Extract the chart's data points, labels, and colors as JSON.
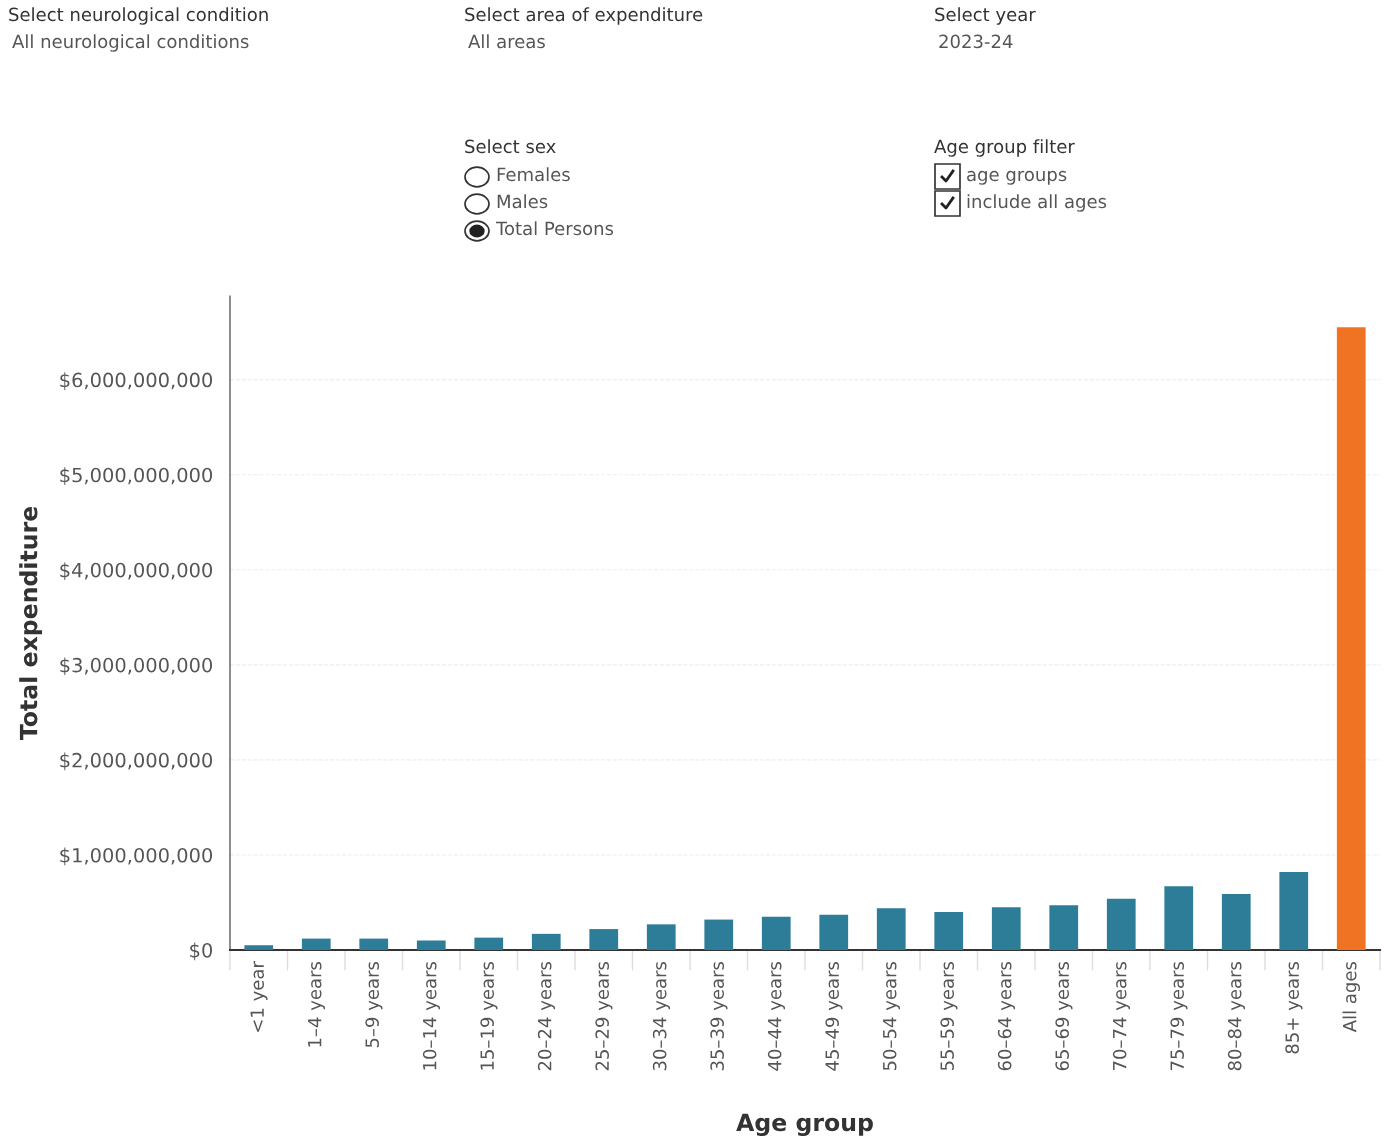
{
  "chart_data": {
    "type": "bar",
    "xlabel": "Age group",
    "ylabel": "Total expenditure",
    "categories": [
      "<1 year",
      "1–4 years",
      "5–9 years",
      "10–14 years",
      "15–19 years",
      "20–24 years",
      "25–29 years",
      "30–34 years",
      "35–39 years",
      "40–44 years",
      "45–49 years",
      "50–54 years",
      "55–59 years",
      "60–64 years",
      "65–69 years",
      "70–74 years",
      "75–79 years",
      "80–84 years",
      "85+ years",
      "All ages"
    ],
    "values": [
      50000000,
      120000000,
      120000000,
      100000000,
      130000000,
      170000000,
      220000000,
      270000000,
      320000000,
      350000000,
      370000000,
      440000000,
      400000000,
      450000000,
      470000000,
      540000000,
      670000000,
      590000000,
      820000000,
      6550000000
    ],
    "colors": [
      "#2e7d98",
      "#2e7d98",
      "#2e7d98",
      "#2e7d98",
      "#2e7d98",
      "#2e7d98",
      "#2e7d98",
      "#2e7d98",
      "#2e7d98",
      "#2e7d98",
      "#2e7d98",
      "#2e7d98",
      "#2e7d98",
      "#2e7d98",
      "#2e7d98",
      "#2e7d98",
      "#2e7d98",
      "#2e7d98",
      "#2e7d98",
      "#f07223"
    ],
    "ylim": [
      0,
      6880000000
    ],
    "yticks": [
      {
        "value": 0,
        "label": "$0"
      },
      {
        "value": 1000000000,
        "label": "$1,000,000,000"
      },
      {
        "value": 2000000000,
        "label": "$2,000,000,000"
      },
      {
        "value": 3000000000,
        "label": "$3,000,000,000"
      },
      {
        "value": 4000000000,
        "label": "$4,000,000,000"
      },
      {
        "value": 5000000000,
        "label": "$5,000,000,000"
      },
      {
        "value": 6000000000,
        "label": "$6,000,000,000"
      }
    ],
    "grid": "y",
    "annotations": [
      "Select neurological condition",
      "All neurological conditions",
      "Select area of expenditure",
      "All areas",
      "Select year",
      "2023-24",
      "Select sex",
      "Females",
      "Males",
      "Total Persons",
      "Age group filter",
      "age groups",
      "include all ages"
    ]
  }
}
